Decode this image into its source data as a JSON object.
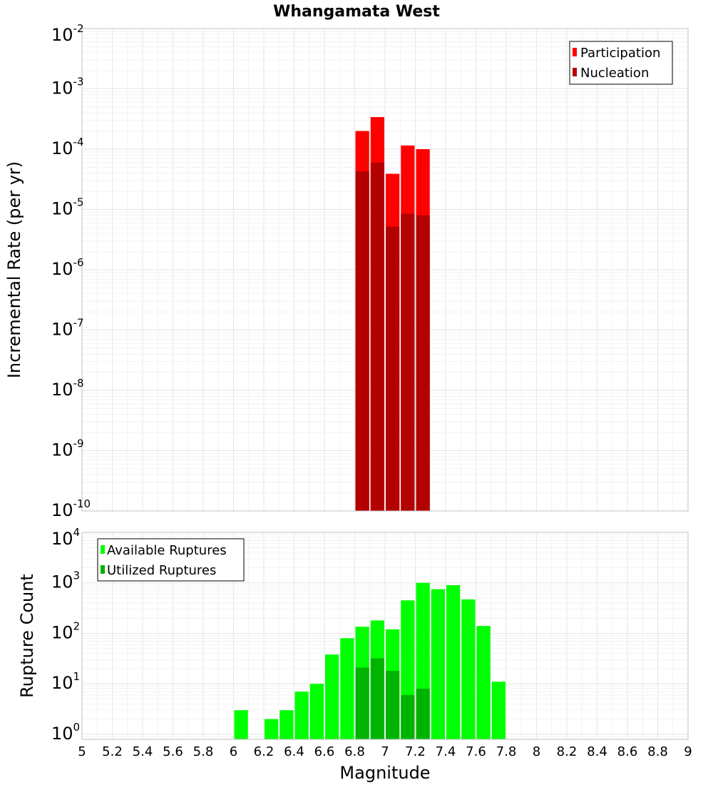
{
  "title": "Whangamata West",
  "xlabel": "Magnitude",
  "x_ticks": [
    "5",
    "5.2",
    "5.4",
    "5.6",
    "5.8",
    "6",
    "6.2",
    "6.4",
    "6.6",
    "6.8",
    "7",
    "7.2",
    "7.4",
    "7.6",
    "7.8",
    "8",
    "8.2",
    "8.4",
    "8.6",
    "8.8",
    "9"
  ],
  "chart_data": [
    {
      "type": "bar",
      "panel": "top",
      "title": "Whangamata West",
      "xlabel": "Magnitude",
      "ylabel": "Incremental Rate (per yr)",
      "yscale": "log",
      "xlim": [
        5,
        9
      ],
      "ylim_exp": [
        -10,
        -2
      ],
      "y_ticks": [
        {
          "base": "10",
          "exp": "-10",
          "value": -10
        },
        {
          "base": "10",
          "exp": "-9",
          "value": -9
        },
        {
          "base": "10",
          "exp": "-8",
          "value": -8
        },
        {
          "base": "10",
          "exp": "-7",
          "value": -7
        },
        {
          "base": "10",
          "exp": "-6",
          "value": -6
        },
        {
          "base": "10",
          "exp": "-5",
          "value": -5
        },
        {
          "base": "10",
          "exp": "-4",
          "value": -4
        },
        {
          "base": "10",
          "exp": "-3",
          "value": -3
        },
        {
          "base": "10",
          "exp": "-2",
          "value": -2
        }
      ],
      "bin_width": 0.1,
      "legend_position": "top-right",
      "series": [
        {
          "name": "Participation",
          "color": "#ff0000",
          "x": [
            6.85,
            6.95,
            7.05,
            7.15,
            7.25
          ],
          "values": [
            0.0002,
            0.00034,
            3.9e-05,
            0.000115,
            0.0001
          ]
        },
        {
          "name": "Nucleation",
          "color": "#b30000",
          "x": [
            6.85,
            6.95,
            7.05,
            7.15,
            7.25
          ],
          "values": [
            4.3e-05,
            6e-05,
            5.2e-06,
            8.5e-06,
            8e-06
          ]
        }
      ]
    },
    {
      "type": "bar",
      "panel": "bottom",
      "xlabel": "Magnitude",
      "ylabel": "Rupture Count",
      "yscale": "log",
      "xlim": [
        5,
        9
      ],
      "ylim_exp": [
        -0.1,
        4
      ],
      "y_ticks": [
        {
          "base": "10",
          "exp": "0",
          "value": 0
        },
        {
          "base": "10",
          "exp": "1",
          "value": 1
        },
        {
          "base": "10",
          "exp": "2",
          "value": 2
        },
        {
          "base": "10",
          "exp": "3",
          "value": 3
        },
        {
          "base": "10",
          "exp": "4",
          "value": 4
        }
      ],
      "bin_width": 0.1,
      "legend_position": "top-left",
      "series": [
        {
          "name": "Available Ruptures",
          "color": "#00ff00",
          "x": [
            6.05,
            6.25,
            6.35,
            6.45,
            6.55,
            6.65,
            6.75,
            6.85,
            6.95,
            7.05,
            7.15,
            7.25,
            7.35,
            7.45,
            7.55,
            7.65,
            7.75
          ],
          "values": [
            3,
            2,
            3,
            7,
            10,
            38,
            80,
            135,
            180,
            120,
            450,
            1000,
            750,
            900,
            470,
            140,
            11
          ]
        },
        {
          "name": "Utilized Ruptures",
          "color": "#00b300",
          "x": [
            6.85,
            6.95,
            7.05,
            7.15,
            7.25
          ],
          "values": [
            21,
            32,
            18,
            6,
            8
          ]
        }
      ]
    }
  ]
}
